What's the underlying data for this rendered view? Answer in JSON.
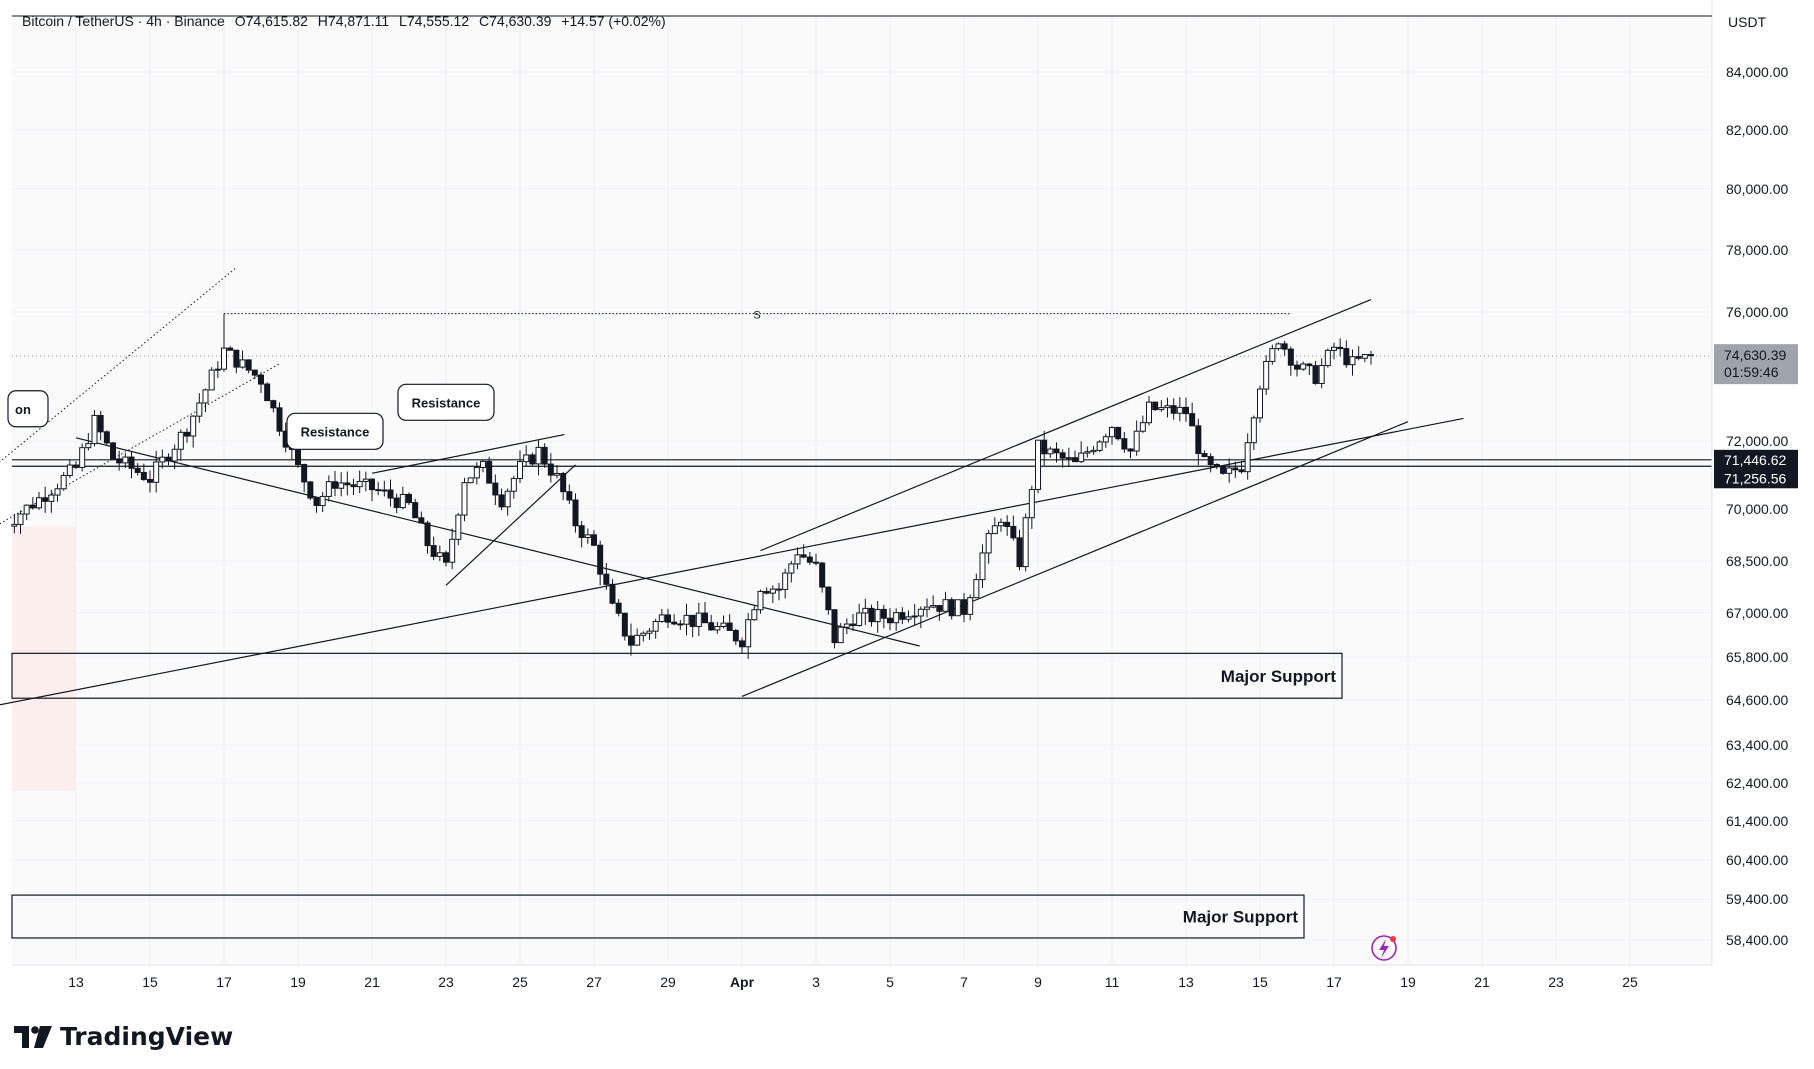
{
  "header": {
    "symbol": "Bitcoin / TetherUS · 4h · Binance",
    "open": "O74,615.82",
    "high": "H74,871.11",
    "low": "L74,555.12",
    "close": "C74,630.39",
    "change": "+14.57 (+0.02%)"
  },
  "axis_unit": "USDT",
  "brand": "TradingView",
  "colors": {
    "up": "#ffffff",
    "down": "#131722",
    "grid": "#f0f3fa",
    "zone_fill": "#fde8e8"
  },
  "chart_data": {
    "type": "candlestick",
    "title": "",
    "x_tick_labels": [
      "13",
      "15",
      "17",
      "19",
      "21",
      "23",
      "25",
      "27",
      "29",
      "Apr",
      "3",
      "5",
      "7",
      "9",
      "11",
      "13",
      "15",
      "17",
      "19",
      "21",
      "23",
      "25"
    ],
    "y_tick_labels": [
      "84,000.00",
      "82,000.00",
      "80,000.00",
      "78,000.00",
      "76,000.00",
      "72,000.00",
      "70,000.00",
      "68,500.00",
      "67,000.00",
      "65,800.00",
      "64,600.00",
      "63,400.00",
      "62,400.00",
      "61,400.00",
      "60,400.00",
      "59,400.00",
      "58,400.00"
    ],
    "y_tick_values": [
      84000,
      82000,
      80000,
      78000,
      76000,
      72000,
      70000,
      68500,
      67000,
      65800,
      64600,
      63400,
      62400,
      61400,
      60400,
      59400,
      58400
    ],
    "price_labels": [
      {
        "label": "74,630.39",
        "sub": "01:59:46",
        "value": 74630.39,
        "style": "last"
      },
      {
        "label": "71,446.62",
        "value": 71446.62,
        "style": "dark"
      },
      {
        "label": "71,256.56",
        "value": 71256.56,
        "style": "dark"
      }
    ],
    "annotations": [
      {
        "text": "Resistance",
        "date": "Mar 20",
        "value": 72300
      },
      {
        "text": "Resistance",
        "date": "Mar 23",
        "value": 73200
      },
      {
        "text": "on",
        "date": "Mar 11",
        "value": 73000
      },
      {
        "text": "Major Support",
        "type": "zone",
        "top": 65900,
        "bottom": 64650
      },
      {
        "text": "Major Support",
        "type": "zone",
        "top": 59500,
        "bottom": 58450
      },
      {
        "text": "S",
        "type": "level",
        "value": 75950
      }
    ],
    "horizontal_levels": [
      71446.62,
      71256.56
    ],
    "close_path": [
      [
        "Mar 11",
        69500
      ],
      [
        "Mar 12",
        70300
      ],
      [
        "Mar 13",
        71200
      ],
      [
        "Mar 13.5",
        72600
      ],
      [
        "Mar 14",
        71500
      ],
      [
        "Mar 15",
        70900
      ],
      [
        "Mar 16",
        72400
      ],
      [
        "Mar 16.5",
        73600
      ],
      [
        "Mar 17",
        74800
      ],
      [
        "Mar 18",
        73900
      ],
      [
        "Mar 18.5",
        72500
      ],
      [
        "Mar 19",
        71200
      ],
      [
        "Mar 19.5",
        70200
      ],
      [
        "Mar 20",
        70800
      ],
      [
        "Mar 21",
        70600
      ],
      [
        "Mar 22",
        70100
      ],
      [
        "Mar 22.5",
        69000
      ],
      [
        "Mar 23",
        68300
      ],
      [
        "Mar 23.5",
        70900
      ],
      [
        "Mar 24",
        71200
      ],
      [
        "Mar 24.5",
        70300
      ],
      [
        "Mar 25",
        71200
      ],
      [
        "Mar 25.5",
        71700
      ],
      [
        "Mar 26",
        70900
      ],
      [
        "Mar 26.5",
        69600
      ],
      [
        "Mar 27",
        68900
      ],
      [
        "Mar 27.5",
        67100
      ],
      [
        "Mar 28",
        66200
      ],
      [
        "Mar 28.5",
        66600
      ],
      [
        "Mar 29",
        67000
      ],
      [
        "Mar 30",
        66700
      ],
      [
        "Mar 31",
        66300
      ],
      [
        "Mar 31.5",
        67800
      ],
      [
        "Apr 1",
        67700
      ],
      [
        "Apr 1.5",
        68800
      ],
      [
        "Apr 2",
        68300
      ],
      [
        "Apr 2.5",
        66300
      ],
      [
        "Apr 3",
        66900
      ],
      [
        "Apr 4",
        66900
      ],
      [
        "Apr 5",
        67300
      ],
      [
        "Apr 6",
        67100
      ],
      [
        "Apr 6.5",
        68700
      ],
      [
        "Apr 7",
        69800
      ],
      [
        "Apr 7.5",
        68500
      ],
      [
        "Apr 8",
        71800
      ],
      [
        "Apr 9",
        71300
      ],
      [
        "Apr 10",
        72500
      ],
      [
        "Apr 10.5",
        71700
      ],
      [
        "Apr 11",
        73000
      ],
      [
        "Apr 12",
        72900
      ],
      [
        "Apr 12.5",
        71300
      ],
      [
        "Apr 13",
        70900
      ],
      [
        "Apr 13.5",
        71300
      ],
      [
        "Apr 14",
        73800
      ],
      [
        "Apr 14.5",
        75200
      ],
      [
        "Apr 15",
        74300
      ],
      [
        "Apr 15.5",
        74000
      ],
      [
        "Apr 16",
        74900
      ],
      [
        "Apr 16.5",
        74400
      ],
      [
        "Apr 17",
        74630
      ]
    ]
  }
}
